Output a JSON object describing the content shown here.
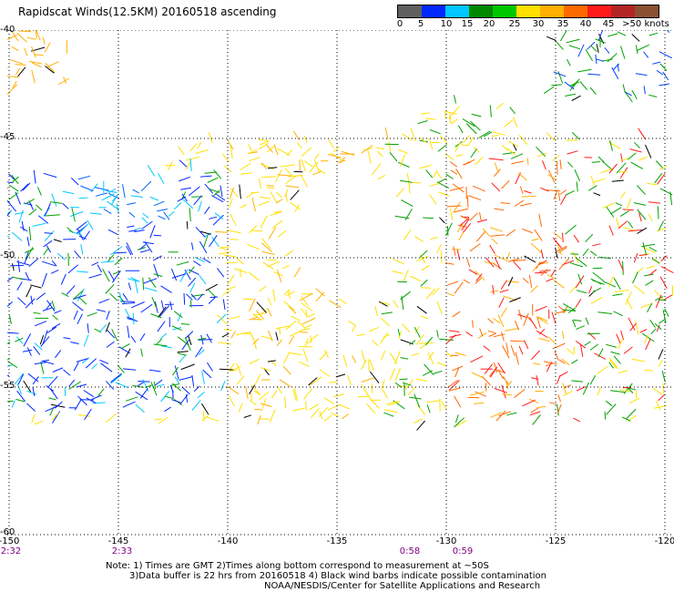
{
  "title": "Rapidscat Winds(12.5KM) 20160518 ascending",
  "colorbar": {
    "colors": [
      "#606060",
      "#0028ff",
      "#00c8ff",
      "#008800",
      "#00c800",
      "#ffe000",
      "#ffb000",
      "#ff6a00",
      "#ff1a1a",
      "#b52424",
      "#8a5030",
      "#ff00ff",
      "#a000c8",
      "#300060"
    ],
    "labels": [
      "0",
      "5",
      "10",
      "15",
      "20",
      "25",
      "30",
      "35",
      "40",
      "45",
      ">50 knots"
    ]
  },
  "map": {
    "lat_labels": [
      "-40",
      "-45",
      "-50",
      "-55",
      "-60"
    ],
    "lon_labels": [
      "-150",
      "-145",
      "-140",
      "-135",
      "-130",
      "-125",
      "-120"
    ],
    "time_labels": [
      "2:32",
      "2:33",
      "0:58",
      "0:59"
    ],
    "lon_range": [
      -150,
      -120
    ],
    "lat_range": [
      -40,
      -60
    ]
  },
  "notes": {
    "line1": "Note: 1) Times are GMT 2)Times along bottom correspond to measurement at ~50S",
    "line2": "3)Data buffer is 22 hrs from 20160518 4) Black wind barbs indicate possible contamination",
    "line3": "NOAA/NESDIS/Center for Satellite Applications and Research"
  }
}
